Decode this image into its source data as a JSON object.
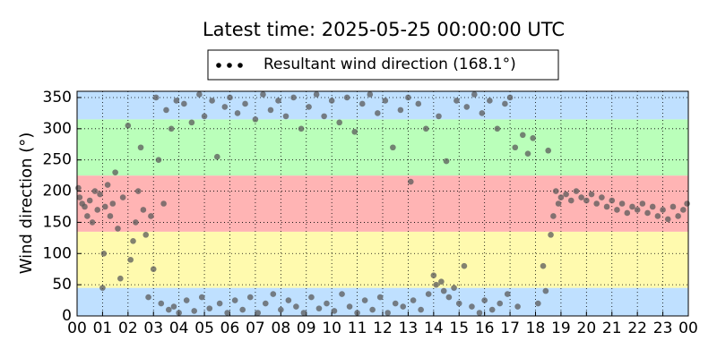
{
  "chart_data": {
    "type": "scatter",
    "title": "Latest time: 2025-05-25 00:00:00 UTC",
    "ylabel": "Wind direction (°)",
    "legend": "top",
    "grid": true,
    "xlim": [
      0,
      24
    ],
    "ylim": [
      0,
      360
    ],
    "xticks": [
      {
        "value": 0,
        "label": "00"
      },
      {
        "value": 1,
        "label": "01"
      },
      {
        "value": 2,
        "label": "02"
      },
      {
        "value": 3,
        "label": "03"
      },
      {
        "value": 4,
        "label": "04"
      },
      {
        "value": 5,
        "label": "05"
      },
      {
        "value": 6,
        "label": "06"
      },
      {
        "value": 7,
        "label": "07"
      },
      {
        "value": 8,
        "label": "08"
      },
      {
        "value": 9,
        "label": "09"
      },
      {
        "value": 10,
        "label": "10"
      },
      {
        "value": 11,
        "label": "11"
      },
      {
        "value": 12,
        "label": "12"
      },
      {
        "value": 13,
        "label": "13"
      },
      {
        "value": 14,
        "label": "14"
      },
      {
        "value": 15,
        "label": "15"
      },
      {
        "value": 16,
        "label": "16"
      },
      {
        "value": 17,
        "label": "17"
      },
      {
        "value": 18,
        "label": "18"
      },
      {
        "value": 19,
        "label": "19"
      },
      {
        "value": 20,
        "label": "20"
      },
      {
        "value": 21,
        "label": "21"
      },
      {
        "value": 22,
        "label": "22"
      },
      {
        "value": 23,
        "label": "23"
      },
      {
        "value": 24,
        "label": "00"
      }
    ],
    "yticks": [
      0,
      50,
      100,
      150,
      200,
      250,
      300,
      350
    ],
    "bands": [
      {
        "from": 0,
        "to": 45,
        "color": "#bfe0ff"
      },
      {
        "from": 45,
        "to": 135,
        "color": "#fffaae"
      },
      {
        "from": 135,
        "to": 225,
        "color": "#ffb4b4"
      },
      {
        "from": 225,
        "to": 315,
        "color": "#baffba"
      },
      {
        "from": 315,
        "to": 360,
        "color": "#bfe0ff"
      }
    ],
    "series": [
      {
        "name": "Resultant wind direction (168.1°)",
        "color": "#5a5a5a",
        "x": [
          0.05,
          0.1,
          0.2,
          0.3,
          0.4,
          0.5,
          0.6,
          0.7,
          0.8,
          0.9,
          1.0,
          1.05,
          1.1,
          1.2,
          1.3,
          1.4,
          1.5,
          1.6,
          1.7,
          1.8,
          2.0,
          2.1,
          2.2,
          2.3,
          2.4,
          2.5,
          2.6,
          2.7,
          2.8,
          2.9,
          3.0,
          3.1,
          3.2,
          3.3,
          3.4,
          3.5,
          3.6,
          3.7,
          3.8,
          3.9,
          4.0,
          4.2,
          4.3,
          4.5,
          4.6,
          4.8,
          4.9,
          5.0,
          5.2,
          5.3,
          5.5,
          5.6,
          5.8,
          5.9,
          6.0,
          6.2,
          6.3,
          6.5,
          6.6,
          6.8,
          7.0,
          7.1,
          7.3,
          7.4,
          7.6,
          7.7,
          7.9,
          8.0,
          8.2,
          8.3,
          8.5,
          8.6,
          8.8,
          8.9,
          9.1,
          9.2,
          9.4,
          9.5,
          9.7,
          9.8,
          10.0,
          10.1,
          10.3,
          10.4,
          10.6,
          10.7,
          10.9,
          11.0,
          11.2,
          11.3,
          11.5,
          11.6,
          11.8,
          11.9,
          12.1,
          12.2,
          12.4,
          12.5,
          12.7,
          12.8,
          13.0,
          13.1,
          13.2,
          13.4,
          13.5,
          13.7,
          13.8,
          14.0,
          14.1,
          14.2,
          14.3,
          14.4,
          14.5,
          14.6,
          14.8,
          14.9,
          15.0,
          15.2,
          15.3,
          15.5,
          15.6,
          15.8,
          15.9,
          16.0,
          16.2,
          16.3,
          16.5,
          16.6,
          16.8,
          16.9,
          17.0,
          17.2,
          17.3,
          17.5,
          17.7,
          17.9,
          18.1,
          18.3,
          18.5,
          18.6,
          18.4,
          18.7,
          18.8,
          18.9,
          19.0,
          19.2,
          19.4,
          19.6,
          19.8,
          20.0,
          20.2,
          20.4,
          20.6,
          20.8,
          21.0,
          21.2,
          21.4,
          21.6,
          21.8,
          22.0,
          22.2,
          22.4,
          22.6,
          22.8,
          23.0,
          23.2,
          23.4,
          23.6,
          23.8,
          23.95
        ],
        "values": [
          205,
          190,
          180,
          175,
          160,
          185,
          150,
          200,
          170,
          195,
          45,
          100,
          175,
          210,
          160,
          180,
          230,
          140,
          60,
          190,
          305,
          90,
          120,
          150,
          200,
          270,
          170,
          130,
          30,
          160,
          75,
          350,
          250,
          20,
          180,
          330,
          10,
          300,
          15,
          345,
          5,
          340,
          25,
          310,
          8,
          355,
          30,
          320,
          12,
          345,
          255,
          20,
          335,
          5,
          350,
          25,
          325,
          10,
          340,
          30,
          315,
          5,
          355,
          20,
          330,
          35,
          345,
          10,
          320,
          25,
          350,
          15,
          300,
          5,
          335,
          30,
          355,
          12,
          320,
          20,
          345,
          8,
          310,
          35,
          350,
          15,
          295,
          5,
          340,
          25,
          355,
          10,
          325,
          30,
          345,
          5,
          270,
          20,
          330,
          15,
          350,
          215,
          25,
          340,
          10,
          300,
          35,
          65,
          50,
          320,
          55,
          40,
          248,
          30,
          45,
          345,
          20,
          80,
          335,
          15,
          355,
          5,
          325,
          25,
          345,
          10,
          300,
          20,
          340,
          35,
          350,
          270,
          15,
          290,
          260,
          285,
          20,
          80,
          265,
          130,
          40,
          160,
          200,
          180,
          190,
          195,
          185,
          200,
          190,
          185,
          195,
          180,
          190,
          175,
          185,
          170,
          180,
          165,
          175,
          170,
          180,
          165,
          175,
          160,
          170,
          155,
          175,
          160,
          170,
          180
        ]
      }
    ]
  }
}
